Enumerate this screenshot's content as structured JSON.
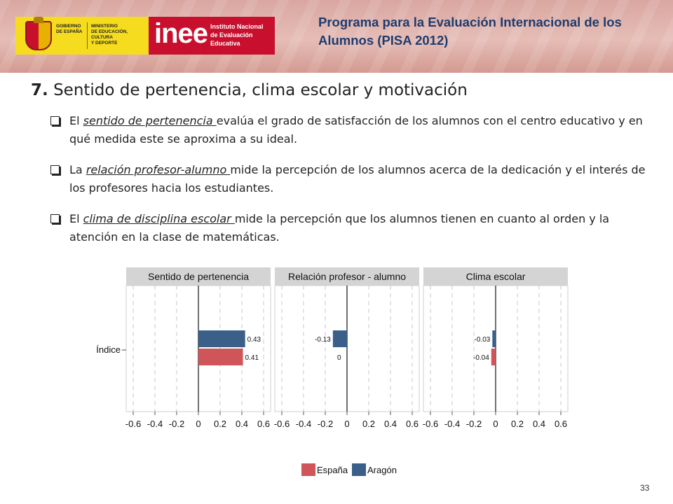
{
  "header": {
    "gov_logo_text": "GOBIERNO\nDE ESPAÑA",
    "ministry_text": "MINISTERIO\nDE EDUCACIÓN, CULTURA\nY DEPORTE",
    "inee_logo": "inee",
    "inee_subtitle": "Instituto Nacional\nde Evaluación\nEducativa",
    "program_title": "Programa para la Evaluación Internacional de los Alumnos (PISA 2012)"
  },
  "heading": {
    "number": "7.",
    "title": "Sentido de pertenencia, clima escolar y motivación"
  },
  "bullets": [
    {
      "before": "El ",
      "term": "sentido de pertenencia ",
      "after": "evalúa el grado de satisfacción de los alumnos con el centro educativo y en qué medida este se aproxima a su ideal."
    },
    {
      "before": "La ",
      "term": "relación profesor-alumno ",
      "after": "mide la percepción de los alumnos acerca de la dedicación y el interés de los profesores hacia los estudiantes."
    },
    {
      "before": "El ",
      "term": "clima de disciplina escolar ",
      "after": "mide la percepción que los alumnos tienen en cuanto al orden y la atención en la clase de matemáticas."
    }
  ],
  "chart_data": {
    "type": "bar",
    "orientation": "horizontal",
    "category": "Índice",
    "xlim": [
      -0.6,
      0.6
    ],
    "xticks": [
      -0.6,
      -0.4,
      -0.2,
      0,
      0.2,
      0.4,
      0.6
    ],
    "xtick_labels": [
      "-0.6",
      "-0.4",
      "-0.2",
      "0",
      "0.2",
      "0.4",
      "0.6"
    ],
    "grid": true,
    "legend_position": "bottom",
    "panels": [
      {
        "title": "Sentido de pertenencia",
        "series": [
          {
            "name": "Aragón",
            "value": 0.43,
            "label": "0.43"
          },
          {
            "name": "España",
            "value": 0.41,
            "label": "0.41"
          }
        ]
      },
      {
        "title": "Relación profesor - alumno",
        "series": [
          {
            "name": "Aragón",
            "value": -0.13,
            "label": "-0.13"
          },
          {
            "name": "España",
            "value": 0,
            "label": "0"
          }
        ]
      },
      {
        "title": "Clima escolar",
        "series": [
          {
            "name": "Aragón",
            "value": -0.03,
            "label": "-0.03"
          },
          {
            "name": "España",
            "value": -0.04,
            "label": "-0.04"
          }
        ]
      }
    ],
    "legend": [
      {
        "name": "España",
        "color": "#d05558"
      },
      {
        "name": "Aragón",
        "color": "#3a5f88"
      }
    ]
  },
  "page_number": "33"
}
